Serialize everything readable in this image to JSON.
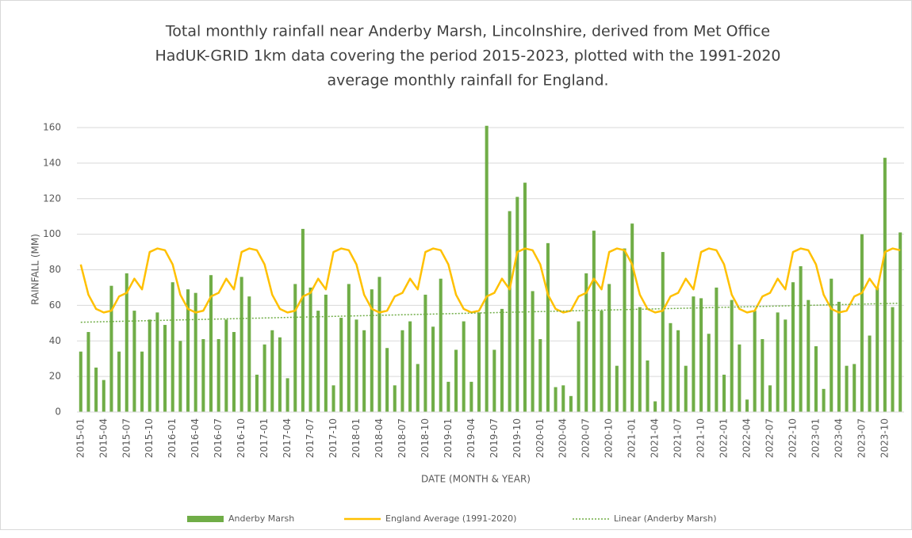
{
  "chart_data": {
    "type": "combo",
    "title": "Total monthly rainfall near Anderby Marsh, Lincolnshire, derived from Met Office",
    "subtitle": [
      "HadUK-GRID 1km data covering the period 2015-2023, plotted with the 1991-2020",
      "average monthly rainfall for England."
    ],
    "x_label": "DATE (MONTH & YEAR)",
    "y_label": "RAINFALL (MM)",
    "ylim": [
      0,
      160
    ],
    "yticks": [
      0,
      20,
      40,
      60,
      80,
      100,
      120,
      140,
      160
    ],
    "grid": true,
    "legend": "bottom",
    "categories": [
      "2015-01",
      null,
      null,
      "2015-04",
      null,
      null,
      "2015-07",
      null,
      null,
      "2015-10",
      null,
      null,
      "2016-01",
      null,
      null,
      "2016-04",
      null,
      null,
      "2016-07",
      null,
      null,
      "2016-10",
      null,
      null,
      "2017-01",
      null,
      null,
      "2017-04",
      null,
      null,
      "2017-07",
      null,
      null,
      "2017-10",
      null,
      null,
      "2018-01",
      null,
      null,
      "2018-04",
      null,
      null,
      "2018-07",
      null,
      null,
      "2018-10",
      null,
      null,
      "2019-01",
      null,
      null,
      "2019-04",
      null,
      null,
      "2019-07",
      null,
      null,
      "2019-10",
      null,
      null,
      "2020-01",
      null,
      null,
      "2020-04",
      null,
      null,
      "2020-07",
      null,
      null,
      "2020-10",
      null,
      null,
      "2021-01",
      null,
      null,
      "2021-04",
      null,
      null,
      "2021-07",
      null,
      null,
      "2021-10",
      null,
      null,
      "2022-01",
      null,
      null,
      "2022-04",
      null,
      null,
      "2022-07",
      null,
      null,
      "2022-10",
      null,
      null,
      "2023-01",
      null,
      null,
      "2023-04",
      null,
      null,
      "2023-07",
      null,
      null,
      "2023-10",
      null,
      null
    ],
    "series": [
      {
        "name": "Anderby Marsh",
        "type": "bar",
        "color": "#70ad47",
        "values": [
          34,
          45,
          25,
          18,
          71,
          34,
          78,
          57,
          34,
          52,
          56,
          49,
          73,
          40,
          69,
          67,
          41,
          77,
          41,
          52,
          45,
          76,
          65,
          21,
          38,
          46,
          42,
          19,
          72,
          103,
          70,
          57,
          66,
          15,
          53,
          72,
          52,
          46,
          69,
          76,
          36,
          15,
          46,
          51,
          27,
          66,
          48,
          75,
          17,
          35,
          51,
          17,
          56,
          161,
          35,
          58,
          113,
          121,
          129,
          68,
          41,
          95,
          14,
          15,
          9,
          51,
          78,
          102,
          57,
          72,
          26,
          92,
          106,
          59,
          29,
          6,
          90,
          50,
          46,
          26,
          65,
          64,
          44,
          70,
          21,
          63,
          38,
          7,
          57,
          41,
          15,
          56,
          52,
          73,
          82,
          63,
          37,
          13,
          75,
          62,
          26,
          27,
          100,
          43,
          70,
          143,
          59,
          101
        ]
      },
      {
        "name": "England Average (1991-2020)",
        "type": "line",
        "color": "#ffc000",
        "values": [
          83,
          66,
          58,
          56,
          57,
          65,
          67,
          75,
          69,
          90,
          92,
          91,
          83,
          66,
          58,
          56,
          57,
          65,
          67,
          75,
          69,
          90,
          92,
          91,
          83,
          66,
          58,
          56,
          57,
          65,
          67,
          75,
          69,
          90,
          92,
          91,
          83,
          66,
          58,
          56,
          57,
          65,
          67,
          75,
          69,
          90,
          92,
          91,
          83,
          66,
          58,
          56,
          57,
          65,
          67,
          75,
          69,
          90,
          92,
          91,
          83,
          66,
          58,
          56,
          57,
          65,
          67,
          75,
          69,
          90,
          92,
          91,
          83,
          66,
          58,
          56,
          57,
          65,
          67,
          75,
          69,
          90,
          92,
          91,
          83,
          66,
          58,
          56,
          57,
          65,
          67,
          75,
          69,
          90,
          92,
          91,
          83,
          66,
          58,
          56,
          57,
          65,
          67,
          75,
          69,
          90,
          92,
          91
        ]
      },
      {
        "name": "Linear (Anderby Marsh)",
        "type": "line",
        "style": "dotted",
        "color": "#70ad47",
        "values": [
          50.5,
          50.6,
          50.7,
          50.8,
          50.9,
          51.0,
          51.1,
          51.2,
          51.3,
          51.4,
          51.5,
          51.6,
          51.7,
          51.8,
          51.9,
          52.0,
          52.1,
          52.2,
          52.3,
          52.4,
          52.5,
          52.6,
          52.7,
          52.8,
          52.9,
          53.0,
          53.1,
          53.2,
          53.3,
          53.4,
          53.5,
          53.6,
          53.7,
          53.8,
          53.9,
          54.0,
          54.1,
          54.2,
          54.3,
          54.4,
          54.5,
          54.6,
          54.7,
          54.8,
          54.9,
          55.0,
          55.1,
          55.2,
          55.3,
          55.4,
          55.5,
          55.6,
          55.7,
          55.8,
          55.9,
          56.0,
          56.1,
          56.2,
          56.3,
          56.4,
          56.5,
          56.6,
          56.7,
          56.8,
          56.9,
          57.0,
          57.1,
          57.2,
          57.3,
          57.4,
          57.5,
          57.6,
          57.7,
          57.8,
          57.9,
          58.0,
          58.1,
          58.2,
          58.3,
          58.4,
          58.5,
          58.6,
          58.7,
          58.8,
          58.9,
          59.0,
          59.1,
          59.2,
          59.3,
          59.4,
          59.5,
          59.6,
          59.7,
          59.8,
          59.9,
          60.0,
          60.1,
          60.2,
          60.3,
          60.4,
          60.5,
          60.6,
          60.7,
          60.8,
          60.9,
          61.0,
          61.1,
          61.2
        ]
      }
    ]
  }
}
